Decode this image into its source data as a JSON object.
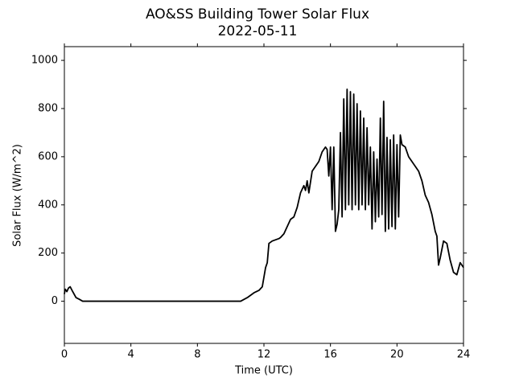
{
  "chart_data": {
    "type": "line",
    "title": "AO&SS Building Tower Solar Flux",
    "subtitle": "2022-05-11",
    "x_label": "Time (UTC)",
    "y_label": "Solar Flux (W/m^2)",
    "xlim": [
      0,
      24
    ],
    "xticks": [
      0,
      4,
      8,
      12,
      16,
      20,
      24
    ],
    "ylim": [
      -175,
      1057
    ],
    "yticks": [
      0,
      200,
      400,
      600,
      800,
      1000
    ],
    "grid": false,
    "x": [
      0,
      0.05,
      0.15,
      0.25,
      0.35,
      0.5,
      0.7,
      0.9,
      1.1,
      10.6,
      11.0,
      11.4,
      11.7,
      11.9,
      12.0,
      12.1,
      12.2,
      12.3,
      12.5,
      12.7,
      12.9,
      13.0,
      13.2,
      13.4,
      13.6,
      13.8,
      14.0,
      14.2,
      14.4,
      14.5,
      14.6,
      14.7,
      14.9,
      15.1,
      15.3,
      15.5,
      15.7,
      15.8,
      15.9,
      16.0,
      16.1,
      16.2,
      16.3,
      16.4,
      16.5,
      16.6,
      16.7,
      16.8,
      16.9,
      17.0,
      17.1,
      17.2,
      17.3,
      17.4,
      17.5,
      17.6,
      17.7,
      17.8,
      17.9,
      18.0,
      18.1,
      18.2,
      18.3,
      18.4,
      18.5,
      18.6,
      18.7,
      18.8,
      18.9,
      19.0,
      19.1,
      19.2,
      19.3,
      19.4,
      19.5,
      19.6,
      19.7,
      19.8,
      19.9,
      20.0,
      20.1,
      20.2,
      20.3,
      20.5,
      20.7,
      20.9,
      21.1,
      21.3,
      21.5,
      21.7,
      21.9,
      22.1,
      22.3,
      22.4,
      22.5,
      22.6,
      22.8,
      23.0,
      23.2,
      23.4,
      23.6,
      23.8,
      24.0
    ],
    "series": [
      {
        "name": "Solar Flux",
        "color": "#000000",
        "values": [
          30,
          50,
          40,
          55,
          60,
          40,
          15,
          8,
          0,
          0,
          15,
          35,
          45,
          60,
          100,
          140,
          160,
          240,
          250,
          255,
          260,
          265,
          280,
          310,
          340,
          350,
          390,
          450,
          480,
          460,
          500,
          450,
          540,
          560,
          580,
          620,
          640,
          630,
          520,
          640,
          380,
          640,
          290,
          320,
          380,
          700,
          350,
          840,
          380,
          880,
          400,
          870,
          380,
          860,
          400,
          820,
          380,
          790,
          400,
          760,
          380,
          720,
          400,
          640,
          300,
          620,
          330,
          590,
          350,
          760,
          360,
          830,
          290,
          680,
          300,
          670,
          310,
          690,
          300,
          650,
          350,
          690,
          650,
          640,
          600,
          580,
          560,
          540,
          500,
          440,
          410,
          360,
          290,
          270,
          150,
          180,
          250,
          240,
          170,
          120,
          110,
          160,
          140
        ]
      }
    ]
  }
}
